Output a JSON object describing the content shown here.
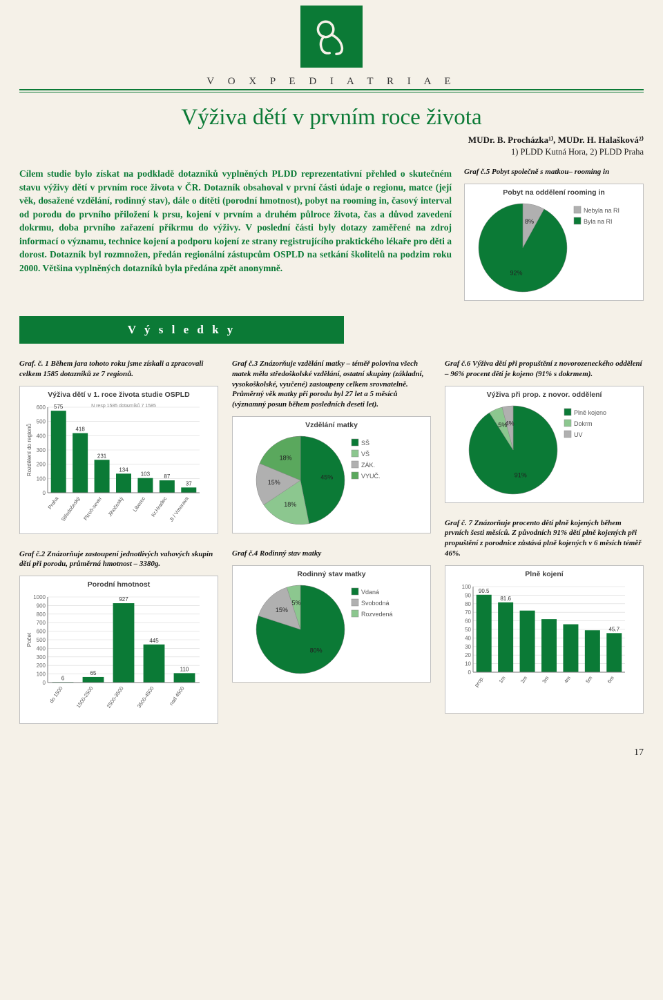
{
  "strap": "V O X   P E D I A T R I A E",
  "title": "Výživa dětí v prvním roce života",
  "byline": "MUDr. B. Procházka¹⁾, MUDr. H. Halašková²⁾",
  "affil": "1) PLDD Kutná Hora, 2) PLDD Praha",
  "lead": "Cílem studie bylo získat na podkladě dotazníků vyplněných PLDD reprezentativní přehled o skutečném stavu výživy dětí v prvním roce života v ČR. Dotazník obsahoval v první části údaje o regionu, matce (její věk, dosažené vzdělání, rodinný stav), dále o dítěti (porodní hmotnost), pobyt na rooming in, časový interval od porodu do prvního přiložení k prsu, kojení v prvním a druhém půlroce života, čas a důvod zavedení dokrmu, doba prvního zařazení příkrmu do výživy. V poslední části byly dotazy zaměřené na zdroj informací o významu, technice kojení a podporu kojení ze strany registrujícího praktického lékaře pro děti a dorost. Dotazník byl rozmnožen, předán regionální zástupcům OSPLD na setkání školitelů na podzim roku 2000. Většina vyplněných dotazníků byla předána zpět anonymně.",
  "results_heading": "V ý s l e d k y",
  "chart5": {
    "caption": "Graf č.5\nPobyt společně s matkou– rooming in",
    "type": "pie",
    "title": "Pobyt na oddělení rooming in",
    "slices": [
      {
        "label": "Nebyla na RI",
        "value": 8,
        "color": "#b0b0b0"
      },
      {
        "label": "Byla na RI",
        "value": 92,
        "color": "#0b7a36"
      }
    ],
    "value_labels": [
      "8%",
      "92%"
    ],
    "background_color": "#ffffff"
  },
  "chart1": {
    "caption": "Graf. č. 1\nBěhem jara tohoto roku jsme získali a zpracovali celkem 1585 dotazníků ze 7 regionů.",
    "type": "bar",
    "title": "Výživa dětí v 1. roce života studie OSPLD",
    "ylabel": "Rozdělení do regionů",
    "subtitle": "N resp 1585 dotazníků 7 1585",
    "categories": [
      "Praha",
      "Středočeský",
      "Plzeň-sever",
      "Jihočeský",
      "Liberec",
      "Kr.Hradec",
      "JI / Vmorava"
    ],
    "values": [
      575,
      418,
      231,
      134,
      103,
      87,
      37
    ],
    "bar_color": "#0b7a36",
    "ylim": [
      0,
      600
    ],
    "ytick_step": 100,
    "background_color": "#ffffff",
    "grid_color": "#d8d8d8",
    "label_fontsize": 8
  },
  "chart2": {
    "caption": "Graf č.2\nZnázorňuje zastoupení jednotlivých vahových skupin dětí při porodu, průměrná hmotnost – 3380g.",
    "type": "bar",
    "title": "Porodní hmotnost",
    "ylabel": "Počet",
    "categories": [
      "do 1500",
      "1500-2500",
      "2500-3500",
      "3500-4500",
      "nad 4500"
    ],
    "values": [
      6,
      65,
      927,
      445,
      110
    ],
    "bar_color": "#0b7a36",
    "ylim": [
      0,
      1000
    ],
    "ytick_step": 100,
    "background_color": "#ffffff",
    "grid_color": "#d8d8d8",
    "label_fontsize": 8
  },
  "chart3": {
    "caption": "Graf č.3\nZnázorňuje vzdělání matky – téměř polovina všech matek měla středoškolské vzdělání, ostatní skupiny (základní, vysokoškolské, vyučené) zastoupeny celkem srovnatelně. Průměrný věk matky při porodu byl 27 let a 5 měsíců (významný posun během posledních deseti let).",
    "type": "pie",
    "title": "Vzdělání matky",
    "slices": [
      {
        "label": "SŠ",
        "value": 45,
        "color": "#0b7a36"
      },
      {
        "label": "VŠ",
        "value": 18,
        "color": "#8cc78f"
      },
      {
        "label": "ZÁK.",
        "value": 15,
        "color": "#b0b0b0"
      },
      {
        "label": "VYUČ.",
        "value": 18,
        "color": "#5aa85d"
      }
    ],
    "value_labels": [
      "45%",
      "18%",
      "15%",
      "18%"
    ],
    "background_color": "#ffffff"
  },
  "chart4": {
    "caption": "Graf č.4\nRodinný stav matky",
    "type": "pie",
    "title": "Rodinný stav matky",
    "slices": [
      {
        "label": "Vdaná",
        "value": 80,
        "color": "#0b7a36"
      },
      {
        "label": "Svobodná",
        "value": 15,
        "color": "#b0b0b0"
      },
      {
        "label": "Rozvedená",
        "value": 5,
        "color": "#8cc78f"
      }
    ],
    "value_labels": [
      "80%",
      "15%",
      "5%"
    ],
    "background_color": "#ffffff"
  },
  "chart6": {
    "caption": "Graf č.6\nVýživa dětí při propuštění z novorozeneckého oddělení – 96% procent dětí je kojeno (91% s dokrmem).",
    "type": "pie",
    "title": "Výživa při prop. z novor. oddělení",
    "slices": [
      {
        "label": "Plně kojeno",
        "value": 91,
        "color": "#0b7a36"
      },
      {
        "label": "Dokrm",
        "value": 5,
        "color": "#8cc78f"
      },
      {
        "label": "UV",
        "value": 4,
        "color": "#b0b0b0"
      }
    ],
    "value_labels": [
      "91%",
      "5%",
      "4%"
    ],
    "background_color": "#ffffff"
  },
  "chart7": {
    "caption": "Graf č. 7\nZnázorňuje procento dětí plně kojených během prvních šesti měsíců. Z původních 91% dětí plně kojených při propuštění z porodnice zůstává plně kojených v 6 měsích téměř 46%.",
    "type": "bar",
    "title": "Plně kojení",
    "ylabel": "",
    "categories": [
      "prop.",
      "1m",
      "2m",
      "3m",
      "4m",
      "5m",
      "6m"
    ],
    "values": [
      90.5,
      81.6,
      72,
      62,
      56,
      49,
      45.7
    ],
    "bar_color": "#0b7a36",
    "show_value_labels": [
      90.5,
      81.6,
      null,
      null,
      null,
      null,
      45.7
    ],
    "ylim": [
      0,
      100
    ],
    "ytick_step": 10,
    "background_color": "#ffffff",
    "grid_color": "#d8d8d8",
    "label_fontsize": 8
  },
  "page_number": "17"
}
